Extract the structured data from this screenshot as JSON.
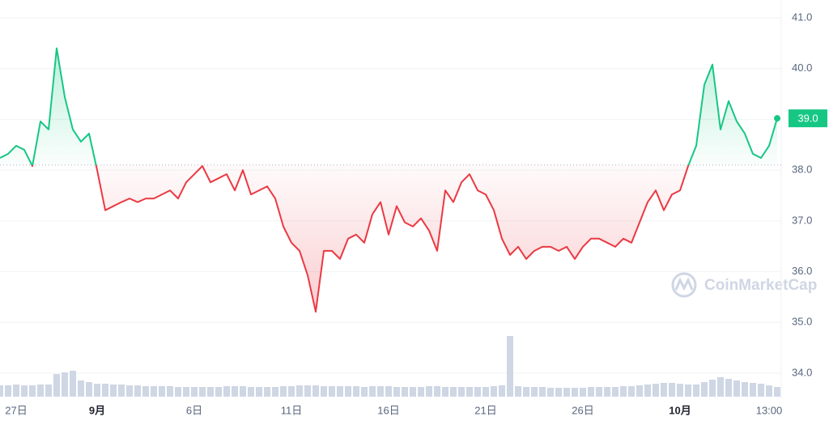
{
  "chart_data": {
    "type": "line",
    "categories": [
      null,
      null,
      "27日",
      null,
      null,
      null,
      null,
      null,
      null,
      null,
      null,
      null,
      "9月",
      null,
      null,
      null,
      null,
      null,
      null,
      null,
      null,
      null,
      null,
      null,
      "6日",
      null,
      null,
      null,
      null,
      null,
      null,
      null,
      null,
      null,
      null,
      null,
      "11日",
      null,
      null,
      null,
      null,
      null,
      null,
      null,
      null,
      null,
      null,
      null,
      "16日",
      null,
      null,
      null,
      null,
      null,
      null,
      null,
      null,
      null,
      null,
      null,
      "21日",
      null,
      null,
      null,
      null,
      null,
      null,
      null,
      null,
      null,
      null,
      null,
      "26日",
      null,
      null,
      null,
      null,
      null,
      null,
      null,
      null,
      null,
      null,
      null,
      "10月",
      null,
      null,
      null,
      null,
      null,
      null,
      null,
      null,
      null,
      null,
      "13:00",
      null
    ],
    "series": [
      {
        "name": "Price",
        "color": "#16c784",
        "below_color": "#ea3943",
        "values": [
          38.24,
          38.32,
          38.48,
          38.4,
          38.08,
          38.96,
          38.8,
          40.4,
          39.44,
          38.8,
          38.56,
          38.72,
          38.0,
          37.21,
          37.29,
          37.37,
          37.44,
          37.37,
          37.44,
          37.44,
          37.52,
          37.6,
          37.44,
          37.76,
          37.92,
          38.08,
          37.76,
          37.84,
          37.92,
          37.6,
          38.0,
          37.52,
          37.6,
          37.68,
          37.44,
          36.89,
          36.57,
          36.41,
          35.93,
          35.21,
          36.41,
          36.41,
          36.25,
          36.65,
          36.73,
          36.57,
          37.13,
          37.37,
          36.73,
          37.29,
          36.97,
          36.89,
          37.05,
          36.81,
          36.41,
          37.6,
          37.37,
          37.76,
          37.92,
          37.6,
          37.52,
          37.21,
          36.65,
          36.33,
          36.49,
          36.25,
          36.41,
          36.49,
          36.49,
          36.41,
          36.49,
          36.25,
          36.49,
          36.65,
          36.65,
          36.57,
          36.49,
          36.65,
          36.57,
          36.97,
          37.37,
          37.6,
          37.21,
          37.52,
          37.6,
          38.08,
          38.48,
          39.68,
          40.08,
          38.8,
          39.36,
          38.96,
          38.72,
          38.32,
          38.24,
          38.48,
          39.02
        ],
        "value_labels": [
          null,
          null,
          null,
          null,
          null,
          null,
          null,
          null,
          null,
          null,
          null,
          null,
          null,
          null,
          null,
          null,
          null,
          null,
          null,
          null,
          null,
          null,
          null,
          null,
          null,
          null,
          null,
          null,
          null,
          null,
          null,
          null,
          null,
          null,
          null,
          null,
          null,
          null,
          null,
          null,
          null,
          null,
          null,
          null,
          null,
          null,
          null,
          null,
          null,
          null,
          null,
          null,
          null,
          null,
          null,
          null,
          null,
          null,
          null,
          null,
          null,
          null,
          null,
          null,
          null,
          null,
          null,
          null,
          null,
          null,
          null,
          null,
          null,
          null,
          null,
          null,
          null,
          null,
          null,
          null,
          null,
          null,
          null,
          null,
          null,
          null,
          null,
          null,
          null,
          null,
          null,
          null,
          null,
          null,
          null,
          null,
          "39.0"
        ]
      },
      {
        "name": "Volume",
        "type": "bar",
        "color": "#cfd6e4",
        "values": [
          14,
          14,
          15,
          14,
          14,
          15,
          15,
          28,
          30,
          32,
          20,
          18,
          16,
          16,
          15,
          15,
          14,
          14,
          13,
          13,
          13,
          13,
          12,
          12,
          12,
          12,
          12,
          12,
          13,
          13,
          13,
          12,
          12,
          12,
          12,
          13,
          13,
          14,
          14,
          14,
          13,
          13,
          13,
          13,
          13,
          12,
          13,
          13,
          13,
          12,
          12,
          12,
          12,
          13,
          13,
          12,
          12,
          12,
          12,
          12,
          12,
          13,
          14,
          75,
          13,
          12,
          12,
          12,
          11,
          11,
          11,
          11,
          11,
          12,
          12,
          12,
          12,
          13,
          13,
          14,
          15,
          16,
          17,
          17,
          16,
          15,
          15,
          18,
          21,
          24,
          22,
          20,
          18,
          17,
          16,
          14,
          12
        ]
      }
    ],
    "baseline": 38.1,
    "ylim": [
      34,
      41
    ],
    "yticks": [
      {
        "value": 34,
        "label": "34.0"
      },
      {
        "value": 35,
        "label": "35.0"
      },
      {
        "value": 36,
        "label": "36.0"
      },
      {
        "value": 37,
        "label": "37.0"
      },
      {
        "value": 38,
        "label": "38.0"
      },
      {
        "value": 39,
        "label": "39.0"
      },
      {
        "value": 40,
        "label": "40.0"
      },
      {
        "value": 41,
        "label": "41.0"
      }
    ],
    "grid": true,
    "watermark": "CoinMarketCap"
  }
}
